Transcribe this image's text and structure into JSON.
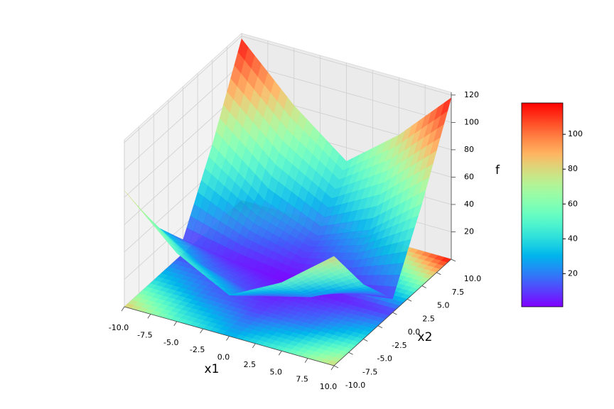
{
  "chart_data": {
    "type": "surface3d",
    "x_label": "x1",
    "y_label": "x2",
    "z_label": "f",
    "x": [
      -10,
      -5,
      0,
      5,
      10
    ],
    "y": [
      -10,
      -5,
      0,
      5,
      10
    ],
    "z": [
      [
        85,
        40,
        10,
        60,
        118
      ],
      [
        50,
        20,
        5,
        30,
        80
      ],
      [
        30,
        10,
        2,
        15,
        50
      ],
      [
        50,
        20,
        5,
        30,
        80
      ],
      [
        80,
        40,
        10,
        60,
        118
      ]
    ],
    "colormap": "rainbow",
    "xlim": [
      -10,
      10
    ],
    "ylim": [
      -10,
      10
    ],
    "zlim": [
      0,
      122
    ],
    "xticks": [
      {
        "value": -10,
        "label": "-10.0"
      },
      {
        "value": -7.5,
        "label": "-7.5"
      },
      {
        "value": -5,
        "label": "-5.0"
      },
      {
        "value": -2.5,
        "label": "-2.5"
      },
      {
        "value": 0,
        "label": "0.0"
      },
      {
        "value": 2.5,
        "label": "2.5"
      },
      {
        "value": 5,
        "label": "5.0"
      },
      {
        "value": 7.5,
        "label": "7.5"
      },
      {
        "value": 10,
        "label": "10.0"
      }
    ],
    "yticks": [
      {
        "value": -10,
        "label": "-10.0"
      },
      {
        "value": -7.5,
        "label": "-7.5"
      },
      {
        "value": -5,
        "label": "-5.0"
      },
      {
        "value": -2.5,
        "label": "-2.5"
      },
      {
        "value": 0,
        "label": "0.0"
      },
      {
        "value": 2.5,
        "label": "2.5"
      },
      {
        "value": 5,
        "label": "5.0"
      },
      {
        "value": 7.5,
        "label": "7.5"
      },
      {
        "value": 10,
        "label": "10.0"
      }
    ],
    "zticks": [
      20,
      40,
      60,
      80,
      100,
      120
    ],
    "colorbar": {
      "clim": [
        1,
        118
      ],
      "ticks": [
        20,
        40,
        60,
        80,
        100
      ]
    },
    "grid": true
  }
}
